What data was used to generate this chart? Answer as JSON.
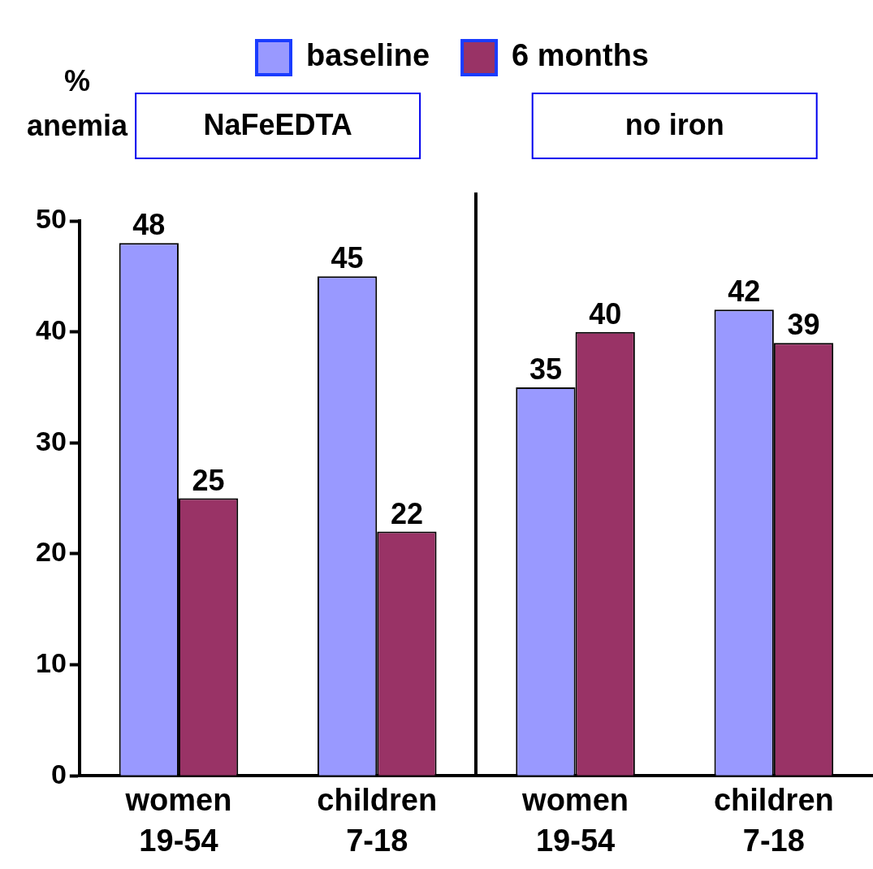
{
  "chart_data": {
    "type": "bar",
    "ylabel": "% anemia",
    "categories": [
      "women\n19-54",
      "children\n7-18",
      "women\n19-54",
      "children\n7-18"
    ],
    "series": [
      {
        "name": "baseline",
        "color": "#9999ff",
        "values": [
          48,
          45,
          35,
          42
        ]
      },
      {
        "name": "6 months",
        "color": "#993366",
        "values": [
          25,
          22,
          40,
          39
        ]
      }
    ],
    "annotations": [
      "NaFeEDTA",
      "no iron"
    ],
    "ylim": [
      0,
      50
    ],
    "yticks": [
      0,
      10,
      20,
      30,
      40,
      50
    ],
    "data_labels": true,
    "grid": false,
    "legend": "top"
  }
}
